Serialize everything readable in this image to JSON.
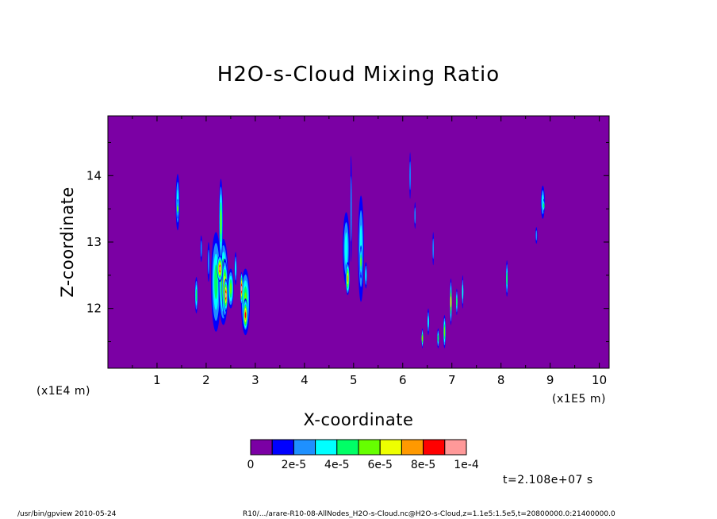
{
  "chart_data": {
    "type": "heatmap",
    "title": "H2O-s-Cloud Mixing Ratio",
    "xlabel": "X-coordinate",
    "ylabel": "Z-coordinate",
    "x_unit": "(x1E5 m)",
    "y_unit": "(x1E4 m)",
    "xlim": [
      0,
      10.2
    ],
    "ylim": [
      11.1,
      14.9
    ],
    "xticks": [
      1,
      2,
      3,
      4,
      5,
      6,
      7,
      8,
      9,
      10
    ],
    "yticks": [
      12,
      13,
      14
    ],
    "background_value": 0,
    "colorbar": {
      "colors": [
        "#7b00a4",
        "#0000ff",
        "#1e90ff",
        "#00ffff",
        "#00ff66",
        "#66ff00",
        "#eeff00",
        "#ff9900",
        "#ff0000",
        "#ff9999"
      ],
      "labels": [
        "0",
        "2e-5",
        "4e-5",
        "6e-5",
        "8e-5",
        "1e-4"
      ],
      "min": 0,
      "max": 0.0001
    },
    "features": [
      {
        "x": 1.42,
        "z": 13.6,
        "w": 0.08,
        "h": 0.85,
        "level": 3
      },
      {
        "x": 1.42,
        "z": 13.5,
        "w": 0.03,
        "h": 0.3,
        "level": 5
      },
      {
        "x": 1.8,
        "z": 12.2,
        "w": 0.06,
        "h": 0.55,
        "level": 4
      },
      {
        "x": 1.9,
        "z": 12.9,
        "w": 0.04,
        "h": 0.4,
        "level": 2
      },
      {
        "x": 2.05,
        "z": 12.7,
        "w": 0.05,
        "h": 0.6,
        "level": 2
      },
      {
        "x": 2.2,
        "z": 12.4,
        "w": 0.2,
        "h": 1.5,
        "level": 4
      },
      {
        "x": 2.35,
        "z": 12.4,
        "w": 0.2,
        "h": 1.3,
        "level": 6
      },
      {
        "x": 2.38,
        "z": 12.3,
        "w": 0.12,
        "h": 0.9,
        "level": 8
      },
      {
        "x": 2.4,
        "z": 12.2,
        "w": 0.08,
        "h": 0.5,
        "level": 9
      },
      {
        "x": 2.3,
        "z": 13.3,
        "w": 0.08,
        "h": 1.3,
        "level": 5
      },
      {
        "x": 2.28,
        "z": 12.6,
        "w": 0.12,
        "h": 0.4,
        "level": 9
      },
      {
        "x": 2.5,
        "z": 12.3,
        "w": 0.12,
        "h": 0.6,
        "level": 5
      },
      {
        "x": 2.6,
        "z": 12.6,
        "w": 0.05,
        "h": 0.5,
        "level": 3
      },
      {
        "x": 2.8,
        "z": 12.1,
        "w": 0.18,
        "h": 1.0,
        "level": 5
      },
      {
        "x": 2.8,
        "z": 11.9,
        "w": 0.1,
        "h": 0.5,
        "level": 8
      },
      {
        "x": 2.72,
        "z": 12.3,
        "w": 0.05,
        "h": 0.5,
        "level": 9
      },
      {
        "x": 4.85,
        "z": 12.9,
        "w": 0.14,
        "h": 1.1,
        "level": 3
      },
      {
        "x": 4.88,
        "z": 12.45,
        "w": 0.08,
        "h": 0.5,
        "level": 7
      },
      {
        "x": 4.95,
        "z": 13.5,
        "w": 0.03,
        "h": 1.6,
        "level": 2
      },
      {
        "x": 5.15,
        "z": 12.9,
        "w": 0.12,
        "h": 1.6,
        "level": 3
      },
      {
        "x": 5.15,
        "z": 12.7,
        "w": 0.05,
        "h": 0.5,
        "level": 5
      },
      {
        "x": 5.25,
        "z": 12.5,
        "w": 0.05,
        "h": 0.4,
        "level": 3
      },
      {
        "x": 6.15,
        "z": 14.0,
        "w": 0.03,
        "h": 0.7,
        "level": 2
      },
      {
        "x": 6.25,
        "z": 13.4,
        "w": 0.03,
        "h": 0.4,
        "level": 2
      },
      {
        "x": 6.4,
        "z": 11.55,
        "w": 0.03,
        "h": 0.3,
        "level": 5
      },
      {
        "x": 6.52,
        "z": 11.8,
        "w": 0.04,
        "h": 0.4,
        "level": 3
      },
      {
        "x": 6.62,
        "z": 12.9,
        "w": 0.03,
        "h": 0.5,
        "level": 2
      },
      {
        "x": 6.72,
        "z": 11.55,
        "w": 0.04,
        "h": 0.3,
        "level": 4
      },
      {
        "x": 6.85,
        "z": 11.65,
        "w": 0.05,
        "h": 0.5,
        "level": 5
      },
      {
        "x": 6.98,
        "z": 12.1,
        "w": 0.04,
        "h": 0.7,
        "level": 6
      },
      {
        "x": 7.1,
        "z": 12.1,
        "w": 0.03,
        "h": 0.4,
        "level": 4
      },
      {
        "x": 7.22,
        "z": 12.25,
        "w": 0.03,
        "h": 0.5,
        "level": 3
      },
      {
        "x": 8.12,
        "z": 12.45,
        "w": 0.04,
        "h": 0.55,
        "level": 4
      },
      {
        "x": 8.85,
        "z": 13.6,
        "w": 0.08,
        "h": 0.5,
        "level": 3
      },
      {
        "x": 8.87,
        "z": 13.55,
        "w": 0.03,
        "h": 0.2,
        "level": 4
      },
      {
        "x": 8.72,
        "z": 13.1,
        "w": 0.04,
        "h": 0.25,
        "level": 2
      }
    ]
  },
  "time_label": "t=2.108e+07 s",
  "footer": {
    "left": "/usr/bin/gpview  2010-05-24",
    "right": "R10/.../arare-R10-08-AllNodes_H2O-s-Cloud.nc@H2O-s-Cloud,z=1.1e5:1.5e5,t=20800000.0:21400000.0"
  }
}
